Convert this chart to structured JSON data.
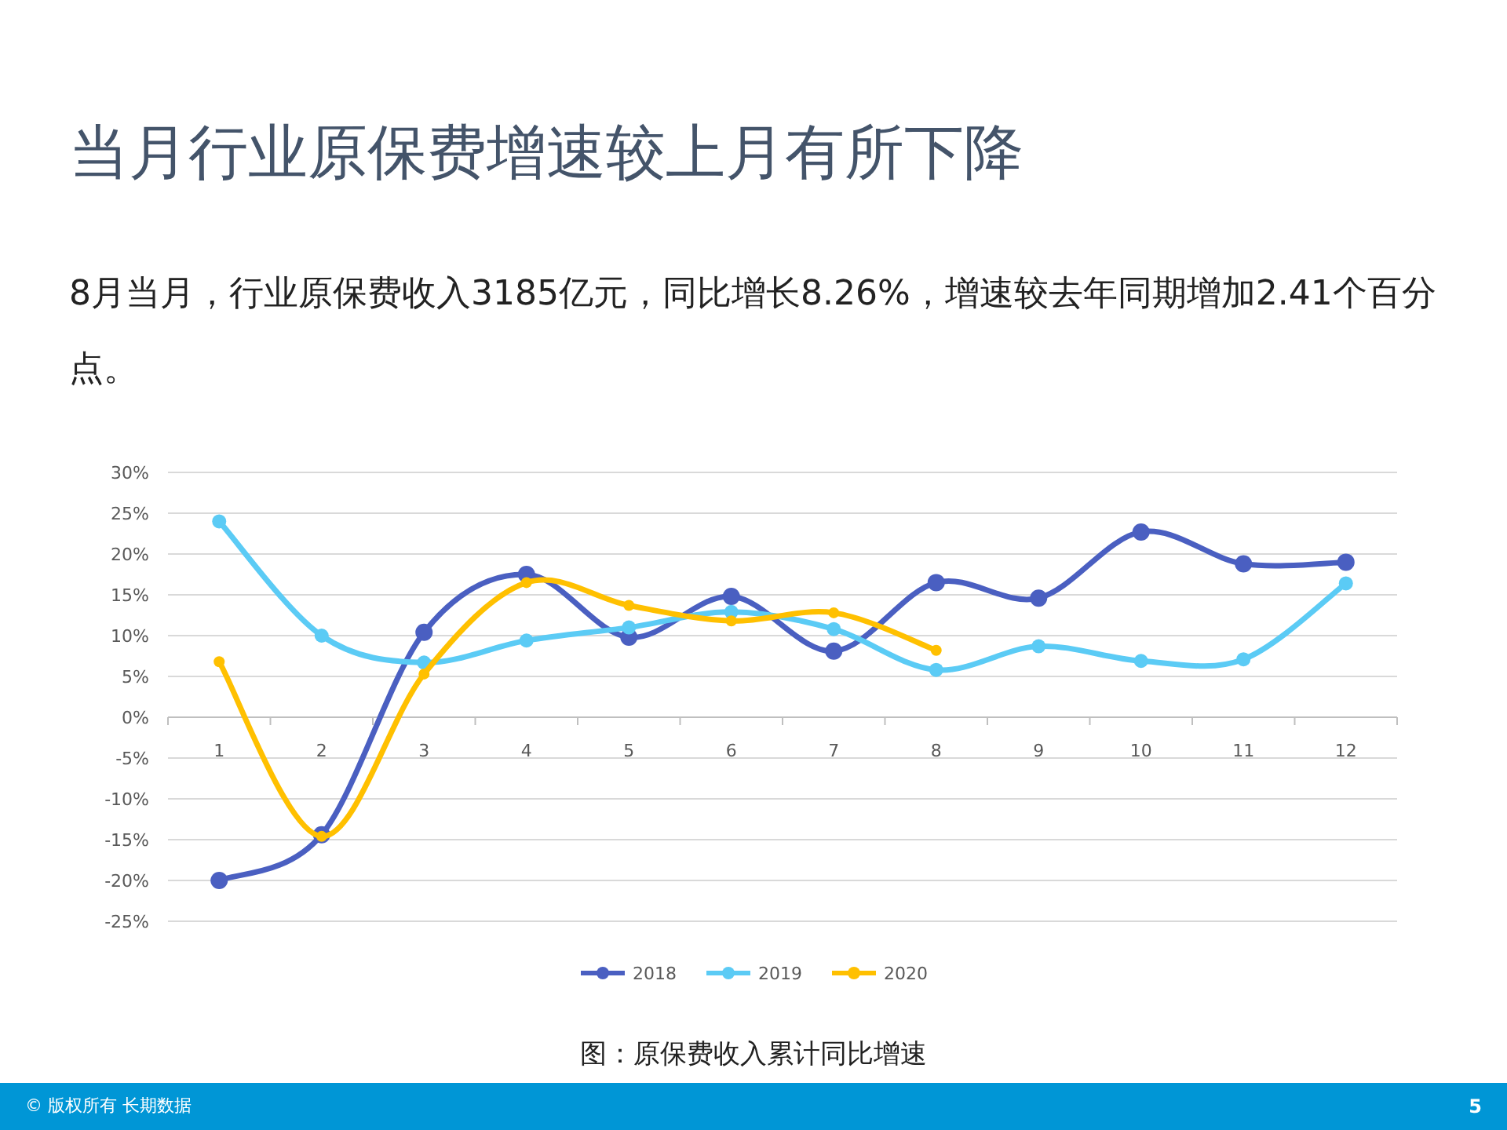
{
  "chart_data": {
    "type": "line",
    "title": "当月行业原保费增速较上月有所下降",
    "subtitle": "8月当月，行业原保费收入3185亿元，同比增长8.26%，增速较去年同期增加2.41个百分点。",
    "categories": [
      "1",
      "2",
      "3",
      "4",
      "5",
      "6",
      "7",
      "8",
      "9",
      "10",
      "11",
      "12"
    ],
    "series": [
      {
        "name": "2018",
        "color": "#4a5fc1",
        "values": [
          -20,
          -14.4,
          10.4,
          17.5,
          9.8,
          14.8,
          8.1,
          16.5,
          14.6,
          22.7,
          18.8,
          19.0
        ]
      },
      {
        "name": "2019",
        "color": "#5bcbf5",
        "values": [
          24.0,
          10.0,
          6.7,
          9.4,
          11.0,
          12.9,
          10.8,
          5.8,
          8.7,
          6.9,
          7.1,
          16.4
        ]
      },
      {
        "name": "2020",
        "color": "#ffc000",
        "values": [
          6.8,
          -14.6,
          5.3,
          16.5,
          13.7,
          11.8,
          12.8,
          8.2,
          null,
          null,
          null,
          null
        ]
      }
    ],
    "ylim": [
      -25,
      30
    ],
    "yticks": [
      {
        "value": -25,
        "label": "-25%"
      },
      {
        "value": -20,
        "label": "-20%"
      },
      {
        "value": -15,
        "label": "-15%"
      },
      {
        "value": -10,
        "label": "-10%"
      },
      {
        "value": -5,
        "label": "-5%"
      },
      {
        "value": 0,
        "label": "0%"
      },
      {
        "value": 5,
        "label": "5%"
      },
      {
        "value": 10,
        "label": "10%"
      },
      {
        "value": 15,
        "label": "15%"
      },
      {
        "value": 20,
        "label": "20%"
      },
      {
        "value": 25,
        "label": "25%"
      },
      {
        "value": 30,
        "label": "30%"
      }
    ],
    "grid": "y",
    "legend": "bottom",
    "marker": "circle",
    "line_style": "solid",
    "annotations": [
      "图：原保费收入累计同比增速",
      "© 版权所有 长期数据",
      "5"
    ]
  }
}
